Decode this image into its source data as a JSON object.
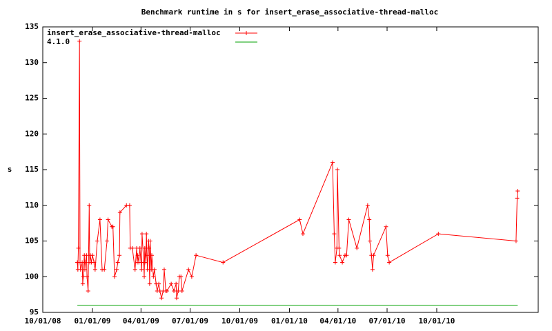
{
  "chart_data": {
    "type": "line",
    "title": "Benchmark runtime in s for insert_erase_associative-thread-malloc",
    "y_label": "s",
    "xlim": [
      "2008-10-01",
      "2011-04-07"
    ],
    "xticks": [
      {
        "value": "2008-10-01",
        "label": "10/01/08"
      },
      {
        "value": "2009-01-01",
        "label": "01/01/09"
      },
      {
        "value": "2009-04-01",
        "label": "04/01/09"
      },
      {
        "value": "2009-07-01",
        "label": "07/01/09"
      },
      {
        "value": "2009-10-01",
        "label": "10/01/09"
      },
      {
        "value": "2010-01-01",
        "label": "01/01/10"
      },
      {
        "value": "2010-04-01",
        "label": "04/01/10"
      },
      {
        "value": "2010-07-01",
        "label": "07/01/10"
      },
      {
        "value": "2010-10-01",
        "label": "10/01/10"
      }
    ],
    "ylim": [
      95,
      135
    ],
    "yticks": [
      95,
      100,
      105,
      110,
      115,
      120,
      125,
      130,
      135
    ],
    "legend": "top-left",
    "series": [
      {
        "name": "insert_erase_associative-thread-malloc",
        "color": "#ff0000",
        "markers": true,
        "x": [
          "2008-12-04",
          "2008-12-05",
          "2008-12-06",
          "2008-12-08",
          "2008-12-09",
          "2008-12-10",
          "2008-12-13",
          "2008-12-14",
          "2008-12-15",
          "2008-12-17",
          "2008-12-18",
          "2008-12-19",
          "2008-12-21",
          "2008-12-22",
          "2008-12-24",
          "2008-12-26",
          "2008-12-27",
          "2008-12-28",
          "2008-12-30",
          "2009-01-01",
          "2009-01-04",
          "2009-01-06",
          "2009-01-10",
          "2009-01-15",
          "2009-01-19",
          "2009-01-23",
          "2009-01-28",
          "2009-01-30",
          "2009-02-06",
          "2009-02-08",
          "2009-02-11",
          "2009-02-15",
          "2009-02-17",
          "2009-02-20",
          "2009-02-21",
          "2009-03-05",
          "2009-03-11",
          "2009-03-12",
          "2009-03-16",
          "2009-03-21",
          "2009-03-24",
          "2009-03-25",
          "2009-03-26",
          "2009-03-28",
          "2009-03-30",
          "2009-04-02",
          "2009-04-03",
          "2009-04-06",
          "2009-04-07",
          "2009-04-08",
          "2009-04-10",
          "2009-04-11",
          "2009-04-12",
          "2009-04-13",
          "2009-04-15",
          "2009-04-16",
          "2009-04-17",
          "2009-04-18",
          "2009-04-20",
          "2009-04-21",
          "2009-04-24",
          "2009-04-26",
          "2009-04-29",
          "2009-05-01",
          "2009-05-04",
          "2009-05-06",
          "2009-05-09",
          "2009-05-12",
          "2009-05-14",
          "2009-05-17",
          "2009-05-19",
          "2009-05-27",
          "2009-06-01",
          "2009-06-05",
          "2009-06-06",
          "2009-06-09",
          "2009-06-11",
          "2009-06-14",
          "2009-06-16",
          "2009-06-28",
          "2009-07-04",
          "2009-07-12",
          "2009-08-31",
          "2010-01-20",
          "2010-01-26",
          "2010-03-22",
          "2010-03-25",
          "2010-03-27",
          "2010-03-30",
          "2010-03-31",
          "2010-04-03",
          "2010-04-04",
          "2010-04-09",
          "2010-04-14",
          "2010-04-17",
          "2010-04-21",
          "2010-05-06",
          "2010-05-26",
          "2010-05-29",
          "2010-05-30",
          "2010-06-02",
          "2010-06-04",
          "2010-06-06",
          "2010-06-29",
          "2010-07-02",
          "2010-07-05",
          "2010-10-04",
          "2011-02-25",
          "2011-02-27",
          "2011-02-28"
        ],
        "values": [
          102,
          101,
          104,
          133,
          102,
          101,
          102,
          99,
          100,
          103,
          101,
          102,
          103,
          100,
          98,
          110,
          102,
          103,
          102,
          103,
          102,
          101,
          105,
          108,
          101,
          101,
          105,
          108,
          107,
          107,
          100,
          101,
          102,
          103,
          109,
          110,
          110,
          104,
          104,
          101,
          104,
          102,
          103,
          102,
          104,
          101,
          106,
          102,
          100,
          104,
          102,
          106,
          103,
          101,
          105,
          104,
          99,
          105,
          101,
          103,
          100,
          101,
          99,
          98,
          99,
          98,
          97,
          98,
          101,
          98,
          98,
          99,
          98,
          99,
          97,
          98,
          100,
          100,
          98,
          101,
          100,
          103,
          102,
          108,
          106,
          116,
          106,
          102,
          104,
          115,
          104,
          103,
          102,
          103,
          103,
          108,
          104,
          110,
          108,
          105,
          103,
          101,
          103,
          107,
          103,
          102,
          106,
          105,
          111,
          112
        ]
      },
      {
        "name": "4.1.0",
        "color": "#00a000",
        "markers": false,
        "x": [
          "2008-12-04",
          "2011-02-28"
        ],
        "values": [
          96,
          96
        ]
      }
    ]
  }
}
